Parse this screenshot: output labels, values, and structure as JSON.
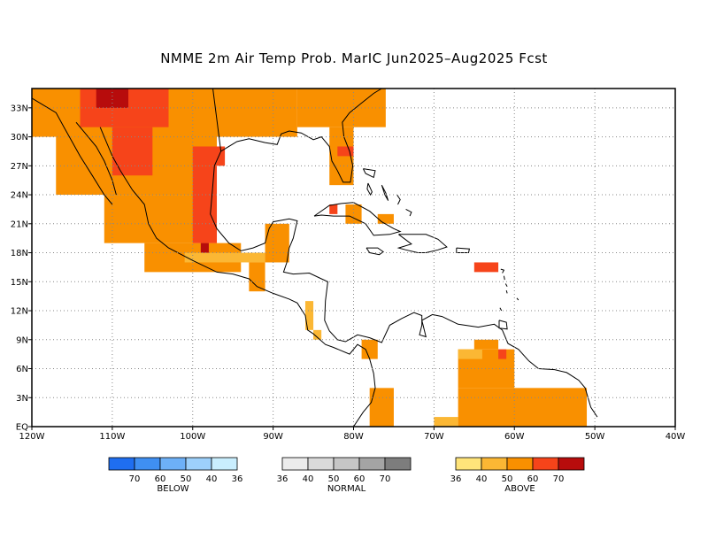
{
  "title": "NMME 2m Air Temp Prob. MarIC  Jun2025–Aug2025 Fcst",
  "map": {
    "lon_range": [
      -120,
      -40
    ],
    "lat_range": [
      0,
      35
    ],
    "x_ticks": [
      {
        "lon": -120,
        "label": "120W"
      },
      {
        "lon": -110,
        "label": "110W"
      },
      {
        "lon": -100,
        "label": "100W"
      },
      {
        "lon": -90,
        "label": "90W"
      },
      {
        "lon": -80,
        "label": "80W"
      },
      {
        "lon": -70,
        "label": "70W"
      },
      {
        "lon": -60,
        "label": "60W"
      },
      {
        "lon": -50,
        "label": "50W"
      },
      {
        "lon": -40,
        "label": "40W"
      }
    ],
    "y_ticks": [
      {
        "lat": 0,
        "label": "EQ"
      },
      {
        "lat": 3,
        "label": "3N"
      },
      {
        "lat": 6,
        "label": "6N"
      },
      {
        "lat": 9,
        "label": "9N"
      },
      {
        "lat": 12,
        "label": "12N"
      },
      {
        "lat": 15,
        "label": "15N"
      },
      {
        "lat": 18,
        "label": "18N"
      },
      {
        "lat": 21,
        "label": "21N"
      },
      {
        "lat": 24,
        "label": "24N"
      },
      {
        "lat": 27,
        "label": "27N"
      },
      {
        "lat": 30,
        "label": "30N"
      },
      {
        "lat": 33,
        "label": "33N"
      }
    ],
    "grid": "dotted",
    "cell_size_deg": 1,
    "regions": [
      {
        "cat": 3,
        "lon": [
          -120,
          -87
        ],
        "lat": [
          30,
          35
        ]
      },
      {
        "cat": 3,
        "lon": [
          -87,
          -76
        ],
        "lat": [
          31,
          35
        ]
      },
      {
        "cat": 3,
        "lon": [
          -83,
          -80
        ],
        "lat": [
          25,
          31
        ]
      },
      {
        "cat": 3,
        "lon": [
          -117,
          -97
        ],
        "lat": [
          24,
          31
        ]
      },
      {
        "cat": 3,
        "lon": [
          -111,
          -97
        ],
        "lat": [
          19,
          24
        ]
      },
      {
        "cat": 3,
        "lon": [
          -106,
          -94
        ],
        "lat": [
          16,
          19
        ]
      },
      {
        "cat": 2,
        "lon": [
          -101,
          -91
        ],
        "lat": [
          17,
          18
        ]
      },
      {
        "cat": 3,
        "lon": [
          -93,
          -91
        ],
        "lat": [
          14,
          17
        ]
      },
      {
        "cat": 3,
        "lon": [
          -91,
          -88
        ],
        "lat": [
          17,
          21
        ]
      },
      {
        "cat": 2,
        "lon": [
          -86,
          -85
        ],
        "lat": [
          10,
          13
        ]
      },
      {
        "cat": 2,
        "lon": [
          -85,
          -84
        ],
        "lat": [
          9,
          10
        ]
      },
      {
        "cat": 3,
        "lon": [
          -79,
          -77
        ],
        "lat": [
          7,
          9
        ]
      },
      {
        "cat": 3,
        "lon": [
          -78,
          -75
        ],
        "lat": [
          0,
          4
        ]
      },
      {
        "cat": 2,
        "lon": [
          -70,
          -67
        ],
        "lat": [
          0,
          1
        ]
      },
      {
        "cat": 3,
        "lon": [
          -67,
          -51
        ],
        "lat": [
          0,
          4
        ]
      },
      {
        "cat": 3,
        "lon": [
          -67,
          -60
        ],
        "lat": [
          4,
          8
        ]
      },
      {
        "cat": 2,
        "lon": [
          -67,
          -64
        ],
        "lat": [
          7,
          8
        ]
      },
      {
        "cat": 3,
        "lon": [
          -65,
          -62
        ],
        "lat": [
          8,
          9
        ]
      },
      {
        "cat": 3,
        "lon": [
          -77,
          -75
        ],
        "lat": [
          21,
          22
        ]
      },
      {
        "cat": 3,
        "lon": [
          -81,
          -79
        ],
        "lat": [
          21,
          23
        ]
      },
      {
        "cat": 4,
        "lon": [
          -114,
          -103
        ],
        "lat": [
          31,
          35
        ]
      },
      {
        "cat": 4,
        "lon": [
          -110,
          -105
        ],
        "lat": [
          26,
          31
        ]
      },
      {
        "cat": 4,
        "lon": [
          -100,
          -97
        ],
        "lat": [
          19,
          27
        ]
      },
      {
        "cat": 4,
        "lon": [
          -100,
          -96
        ],
        "lat": [
          27,
          29
        ]
      },
      {
        "cat": 4,
        "lon": [
          -82,
          -80
        ],
        "lat": [
          28,
          29
        ]
      },
      {
        "cat": 4,
        "lon": [
          -83,
          -82
        ],
        "lat": [
          22,
          23
        ]
      },
      {
        "cat": 4,
        "lon": [
          -65,
          -62
        ],
        "lat": [
          16,
          17
        ]
      },
      {
        "cat": 4,
        "lon": [
          -62,
          -61
        ],
        "lat": [
          7,
          8
        ]
      },
      {
        "cat": 5,
        "lon": [
          -112,
          -108
        ],
        "lat": [
          33,
          35
        ]
      },
      {
        "cat": 5,
        "lon": [
          -99,
          -98
        ],
        "lat": [
          18,
          19
        ]
      }
    ]
  },
  "legends": [
    {
      "name": "BELOW",
      "colors": [
        "#1f6ef0",
        "#3f8ff2",
        "#6db0f7",
        "#9dd0fb",
        "#c9eefe"
      ],
      "labels": [
        "70",
        "60",
        "50",
        "40",
        "36"
      ]
    },
    {
      "name": "NORMAL",
      "colors": [
        "#ececec",
        "#dadada",
        "#c6c6c6",
        "#a4a4a4",
        "#7d7d7d"
      ],
      "labels": [
        "36",
        "40",
        "50",
        "60",
        "70"
      ]
    },
    {
      "name": "ABOVE",
      "colors": [
        "#ffe47a",
        "#fbb734",
        "#f99000",
        "#f6441a",
        "#b70c0c"
      ],
      "labels": [
        "36",
        "40",
        "50",
        "60",
        "70"
      ]
    }
  ]
}
